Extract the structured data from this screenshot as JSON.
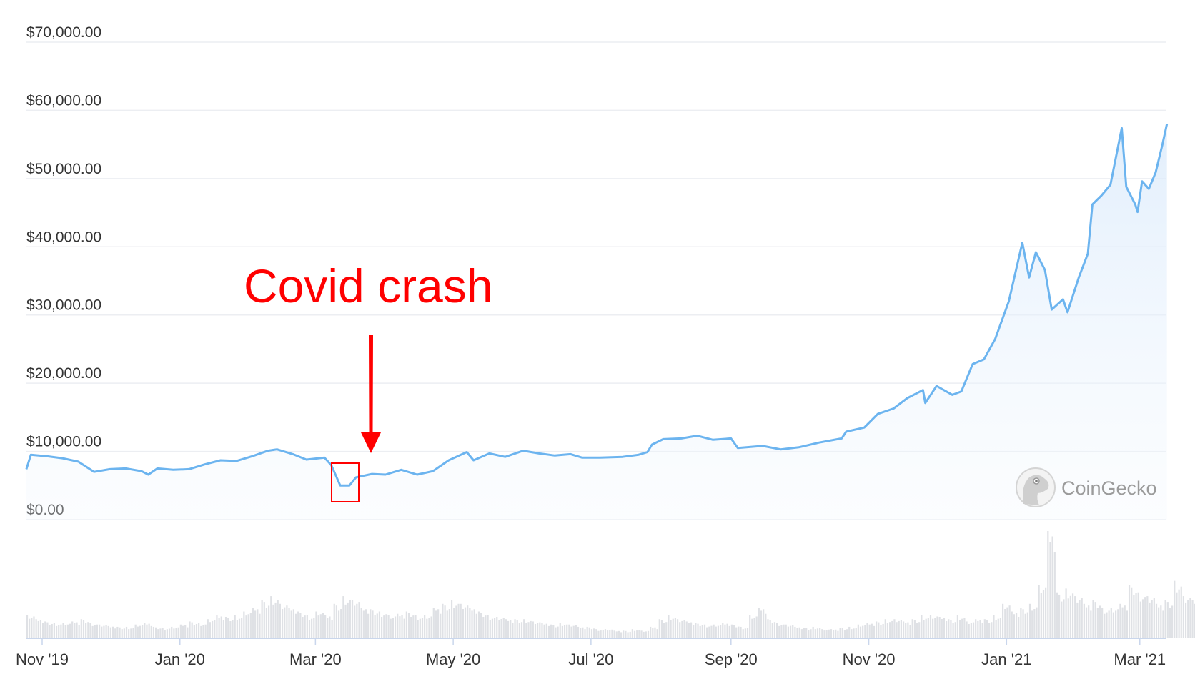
{
  "chart_data": {
    "type": "line",
    "title": "",
    "xlabel": "",
    "ylabel": "",
    "ylim": [
      0,
      70000
    ],
    "grid": true,
    "y_ticks": [
      "$0.00",
      "$10,000.00",
      "$20,000.00",
      "$30,000.00",
      "$40,000.00",
      "$50,000.00",
      "$60,000.00",
      "$70,000.00"
    ],
    "y_tick_values": [
      0,
      10000,
      20000,
      30000,
      40000,
      50000,
      60000,
      70000
    ],
    "x_ticks": [
      "Nov '19",
      "Jan '20",
      "Mar '20",
      "May '20",
      "Jul '20",
      "Sep '20",
      "Nov '20",
      "Jan '21",
      "Mar '21"
    ],
    "x_tick_dates": [
      "2019-11-01",
      "2020-01-01",
      "2020-03-01",
      "2020-05-01",
      "2020-07-01",
      "2020-09-01",
      "2020-11-01",
      "2021-01-01",
      "2021-03-01"
    ],
    "series": [
      {
        "color": "#6cb4ef",
        "points": [
          [
            "2019-10-25",
            7400
          ],
          [
            "2019-10-27",
            9500
          ],
          [
            "2019-11-03",
            9300
          ],
          [
            "2019-11-10",
            9000
          ],
          [
            "2019-11-17",
            8500
          ],
          [
            "2019-11-24",
            7000
          ],
          [
            "2019-12-01",
            7400
          ],
          [
            "2019-12-08",
            7500
          ],
          [
            "2019-12-15",
            7100
          ],
          [
            "2019-12-18",
            6600
          ],
          [
            "2019-12-22",
            7500
          ],
          [
            "2019-12-29",
            7300
          ],
          [
            "2020-01-05",
            7400
          ],
          [
            "2020-01-12",
            8100
          ],
          [
            "2020-01-19",
            8700
          ],
          [
            "2020-01-26",
            8600
          ],
          [
            "2020-02-02",
            9300
          ],
          [
            "2020-02-09",
            10100
          ],
          [
            "2020-02-13",
            10300
          ],
          [
            "2020-02-20",
            9600
          ],
          [
            "2020-02-26",
            8800
          ],
          [
            "2020-03-05",
            9100
          ],
          [
            "2020-03-08",
            8000
          ],
          [
            "2020-03-12",
            5000
          ],
          [
            "2020-03-16",
            5000
          ],
          [
            "2020-03-19",
            6200
          ],
          [
            "2020-03-26",
            6700
          ],
          [
            "2020-04-01",
            6600
          ],
          [
            "2020-04-08",
            7300
          ],
          [
            "2020-04-15",
            6600
          ],
          [
            "2020-04-22",
            7100
          ],
          [
            "2020-04-29",
            8700
          ],
          [
            "2020-05-07",
            9900
          ],
          [
            "2020-05-10",
            8700
          ],
          [
            "2020-05-17",
            9700
          ],
          [
            "2020-05-24",
            9200
          ],
          [
            "2020-06-01",
            10100
          ],
          [
            "2020-06-08",
            9700
          ],
          [
            "2020-06-15",
            9400
          ],
          [
            "2020-06-22",
            9600
          ],
          [
            "2020-06-27",
            9100
          ],
          [
            "2020-07-05",
            9100
          ],
          [
            "2020-07-15",
            9200
          ],
          [
            "2020-07-22",
            9500
          ],
          [
            "2020-07-26",
            9900
          ],
          [
            "2020-07-28",
            11000
          ],
          [
            "2020-08-02",
            11800
          ],
          [
            "2020-08-10",
            11900
          ],
          [
            "2020-08-17",
            12300
          ],
          [
            "2020-08-24",
            11700
          ],
          [
            "2020-09-01",
            11900
          ],
          [
            "2020-09-04",
            10500
          ],
          [
            "2020-09-15",
            10800
          ],
          [
            "2020-09-23",
            10300
          ],
          [
            "2020-10-01",
            10600
          ],
          [
            "2020-10-10",
            11300
          ],
          [
            "2020-10-20",
            11900
          ],
          [
            "2020-10-22",
            12900
          ],
          [
            "2020-10-30",
            13500
          ],
          [
            "2020-11-05",
            15500
          ],
          [
            "2020-11-12",
            16300
          ],
          [
            "2020-11-18",
            17800
          ],
          [
            "2020-11-25",
            19000
          ],
          [
            "2020-11-26",
            17100
          ],
          [
            "2020-12-01",
            19600
          ],
          [
            "2020-12-08",
            18300
          ],
          [
            "2020-12-12",
            18800
          ],
          [
            "2020-12-17",
            22800
          ],
          [
            "2020-12-22",
            23500
          ],
          [
            "2020-12-27",
            26500
          ],
          [
            "2021-01-02",
            32000
          ],
          [
            "2021-01-08",
            40600
          ],
          [
            "2021-01-11",
            35500
          ],
          [
            "2021-01-14",
            39200
          ],
          [
            "2021-01-18",
            36600
          ],
          [
            "2021-01-21",
            30800
          ],
          [
            "2021-01-26",
            32300
          ],
          [
            "2021-01-28",
            30400
          ],
          [
            "2021-02-02",
            35500
          ],
          [
            "2021-02-06",
            39000
          ],
          [
            "2021-02-08",
            46200
          ],
          [
            "2021-02-12",
            47500
          ],
          [
            "2021-02-16",
            49100
          ],
          [
            "2021-02-21",
            57400
          ],
          [
            "2021-02-23",
            48800
          ],
          [
            "2021-02-27",
            46200
          ],
          [
            "2021-02-28",
            45100
          ],
          [
            "2021-03-02",
            49600
          ],
          [
            "2021-03-05",
            48500
          ],
          [
            "2021-03-08",
            50900
          ],
          [
            "2021-03-11",
            55000
          ],
          [
            "2021-03-13",
            58000
          ]
        ]
      }
    ],
    "volume": {
      "color": "#dfe1e5",
      "start": "2019-10-25",
      "step_days": 4,
      "values": [
        30,
        25,
        22,
        20,
        20,
        22,
        25,
        20,
        18,
        16,
        15,
        15,
        18,
        20,
        15,
        14,
        15,
        18,
        22,
        20,
        25,
        30,
        28,
        30,
        35,
        40,
        50,
        55,
        45,
        40,
        35,
        30,
        35,
        30,
        45,
        55,
        50,
        40,
        38,
        35,
        30,
        32,
        35,
        30,
        30,
        40,
        45,
        50,
        45,
        40,
        35,
        30,
        28,
        25,
        25,
        25,
        22,
        20,
        18,
        20,
        18,
        15,
        15,
        12,
        12,
        10,
        10,
        12,
        10,
        15,
        25,
        30,
        25,
        22,
        20,
        18,
        18,
        20,
        18,
        15,
        30,
        40,
        25,
        20,
        18,
        15,
        14,
        15,
        12,
        12,
        14,
        15,
        18,
        20,
        22,
        25,
        25,
        22,
        25,
        30,
        30,
        28,
        25,
        30,
        22,
        25,
        25,
        30,
        45,
        35,
        40,
        45,
        70,
        140,
        60,
        65,
        55,
        45,
        50,
        40,
        40,
        45,
        70,
        60,
        55,
        45,
        50,
        75,
        55,
        50,
        45,
        50
      ]
    }
  },
  "annotation": {
    "label": "Covid crash",
    "color": "#ff0000"
  },
  "watermark": {
    "text": "CoinGecko"
  }
}
